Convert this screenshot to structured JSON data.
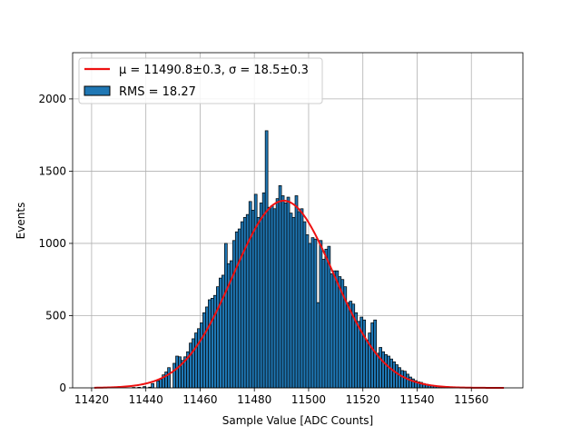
{
  "chart_data": {
    "type": "bar",
    "xlabel": "Sample Value [ADC Counts]",
    "ylabel": "Events",
    "xlim": [
      1413,
      1579
    ],
    "ylim": [
      0,
      2320
    ],
    "xticks": [
      11420,
      11440,
      11460,
      11480,
      11500,
      11520,
      11540,
      11560
    ],
    "yticks": [
      0,
      500,
      1000,
      1500,
      2000
    ],
    "grid": true,
    "legend_position": "top-left",
    "bins": {
      "start": 11420,
      "bin_width": 1,
      "values": [
        0,
        0,
        0,
        0,
        0,
        0,
        0,
        0,
        0,
        0,
        0,
        0,
        0,
        0,
        0,
        3,
        0,
        4,
        0,
        9,
        0,
        5,
        30,
        0,
        48,
        60,
        90,
        110,
        140,
        0,
        170,
        220,
        215,
        190,
        215,
        250,
        310,
        340,
        380,
        410,
        450,
        520,
        560,
        610,
        620,
        640,
        700,
        760,
        780,
        1000,
        860,
        880,
        1020,
        1080,
        1100,
        1150,
        1180,
        1200,
        1290,
        1230,
        1340,
        1180,
        1280,
        1350,
        1780,
        1250,
        1260,
        1240,
        1310,
        1400,
        1330,
        1280,
        1320,
        1210,
        1180,
        1330,
        1220,
        1240,
        1150,
        1060,
        1000,
        1040,
        1030,
        590,
        1020,
        890,
        960,
        980,
        790,
        810,
        810,
        770,
        750,
        700,
        590,
        600,
        580,
        520,
        460,
        490,
        470,
        330,
        380,
        450,
        470,
        240,
        280,
        250,
        230,
        220,
        200,
        180,
        160,
        140,
        120,
        115,
        95,
        75,
        62,
        50,
        42,
        38,
        30,
        25,
        20,
        16,
        14,
        12,
        10,
        8,
        6,
        4,
        3,
        2
      ]
    },
    "fit": {
      "mu": 11490.8,
      "sigma": 18.5,
      "amplitude": 1295,
      "x_range": [
        11421,
        11572
      ]
    },
    "legend": [
      {
        "kind": "line",
        "color": "#ee1111",
        "label": "μ = 11490.8±0.3, σ = 18.5±0.3"
      },
      {
        "kind": "patch",
        "color": "#1f77b4",
        "label": "RMS = 18.27"
      }
    ],
    "colors": {
      "bar": "#1f77b4",
      "fit_line": "#ee1111",
      "grid": "#b0b0b0"
    }
  }
}
